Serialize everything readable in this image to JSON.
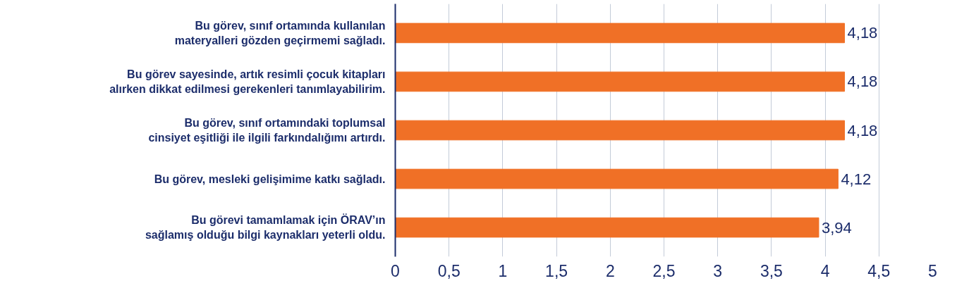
{
  "chart_data": {
    "type": "bar",
    "orientation": "horizontal",
    "categories": [
      "Bu görev, sınıf ortamında kullanılan\nmateryalleri gözden geçirmemi sağladı.",
      "Bu görev sayesinde, artık resimli çocuk kitapları\nalırken dikkat edilmesi gerekenleri tanımlayabilirim.",
      "Bu görev, sınıf ortamındaki toplumsal\ncinsiyet eşitliği ile ilgili farkındalığımı artırdı.",
      "Bu görev, mesleki gelişimime katkı sağladı.",
      "Bu görevi tamamlamak için ÖRAV’ın\nsağlamış olduğu bilgi kaynakları yeterli oldu."
    ],
    "values": [
      4.18,
      4.18,
      4.18,
      4.12,
      3.94
    ],
    "value_labels": [
      "4,18",
      "4,18",
      "4,18",
      "4,12",
      "3,94"
    ],
    "color": "#f07026",
    "xlim": [
      0,
      5
    ],
    "xticks": [
      0,
      {
        "value": 0.5,
        "label": "0,5"
      },
      1,
      {
        "value": 1.5,
        "label": "1,5"
      },
      2,
      {
        "value": 2.5,
        "label": "2,5"
      },
      3,
      {
        "value": 3.5,
        "label": "3,5"
      },
      4,
      {
        "value": 4.5,
        "label": "4,5"
      },
      5
    ],
    "grid": "x"
  }
}
